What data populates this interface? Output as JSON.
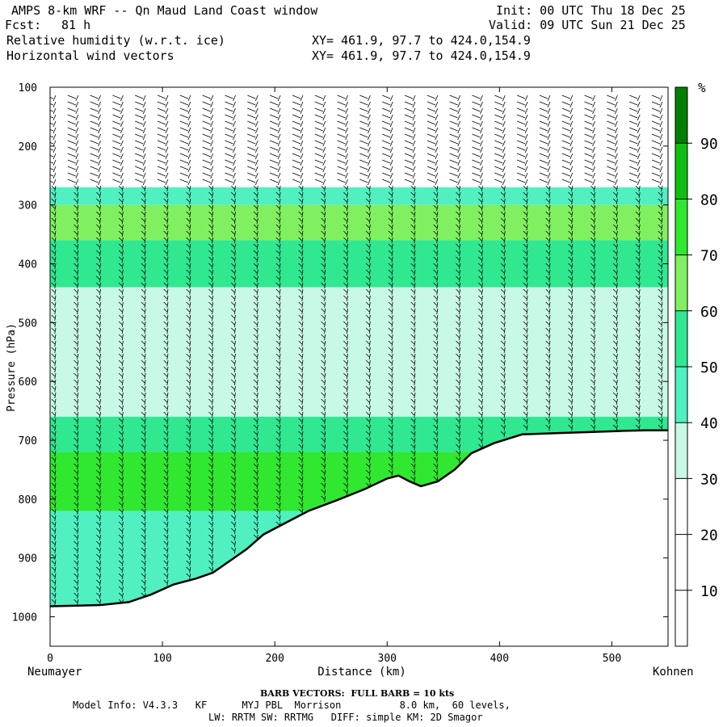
{
  "header": {
    "title": "AMPS 8-km WRF -- Qn Maud Land Coast window",
    "fcst_label": "Fcst:",
    "fcst_value": "81 h",
    "init": "Init: 00 UTC Thu 18 Dec 25",
    "valid": "Valid: 09 UTC Sun 21 Dec 25",
    "field1": "Relative humidity (w.r.t. ice)",
    "field2": "Horizontal wind vectors",
    "xy1": "XY= 461.9, 97.7 to 424.0,154.9",
    "xy2": "XY= 461.9, 97.7 to 424.0,154.9"
  },
  "footer": {
    "barb_note": "BARB VECTORS:  FULL BARB = 10 kts",
    "model_info": "Model Info: V4.3.3   KF      MYJ PBL  Morrison          8.0 km,  60 levels,",
    "model_info2": "LW: RRTM SW: RRTMG   DIFF: simple KM: 2D Smagor"
  },
  "chart_data": {
    "type": "heatmap",
    "title": "Relative humidity (w.r.t. ice) cross-section with horizontal wind vectors",
    "xlabel": "Distance (km)",
    "ylabel": "Pressure (hPa)",
    "xlim": [
      0,
      550
    ],
    "ylim": [
      1050,
      100
    ],
    "x_ticks": [
      0,
      100,
      200,
      300,
      400,
      500
    ],
    "y_ticks": [
      100,
      200,
      300,
      400,
      500,
      600,
      700,
      800,
      900,
      1000
    ],
    "left_endpoint_label": "Neumayer",
    "right_endpoint_label": "Kohnen",
    "colorbar": {
      "unit": "%",
      "levels": [
        10,
        20,
        30,
        40,
        50,
        60,
        70,
        80,
        90
      ],
      "colors": [
        "#ffffff",
        "#ffffff",
        "#ffffff",
        "#c8f8e6",
        "#50f0c0",
        "#30e890",
        "#80f060",
        "#30e830",
        "#10c010",
        "#008000"
      ]
    },
    "terrain_profile_hPa": [
      [
        0,
        982
      ],
      [
        25,
        981
      ],
      [
        45,
        980
      ],
      [
        70,
        975
      ],
      [
        90,
        962
      ],
      [
        110,
        945
      ],
      [
        130,
        935
      ],
      [
        145,
        925
      ],
      [
        160,
        905
      ],
      [
        175,
        885
      ],
      [
        190,
        860
      ],
      [
        210,
        840
      ],
      [
        230,
        820
      ],
      [
        255,
        802
      ],
      [
        280,
        783
      ],
      [
        300,
        765
      ],
      [
        310,
        760
      ],
      [
        320,
        770
      ],
      [
        330,
        778
      ],
      [
        345,
        770
      ],
      [
        360,
        750
      ],
      [
        375,
        722
      ],
      [
        395,
        705
      ],
      [
        420,
        690
      ],
      [
        450,
        688
      ],
      [
        480,
        686
      ],
      [
        510,
        684
      ],
      [
        530,
        683
      ],
      [
        550,
        683
      ]
    ],
    "rh_bands": [
      {
        "p_top": 270,
        "p_bottom": 300,
        "rh": 40
      },
      {
        "p_top": 300,
        "p_bottom": 360,
        "rh": 65
      },
      {
        "p_top": 360,
        "p_bottom": 440,
        "rh": 55
      },
      {
        "p_top": 440,
        "p_bottom": 660,
        "rh": 35
      },
      {
        "p_top": 660,
        "p_bottom": 720,
        "rh": 50
      },
      {
        "p_top": 720,
        "p_bottom": 820,
        "rh": 70
      },
      {
        "p_top": 820,
        "p_bottom": 1000,
        "rh": 45
      }
    ],
    "wind_columns_km": [
      5,
      25,
      45,
      65,
      85,
      105,
      125,
      145,
      165,
      185,
      205,
      225,
      245,
      265,
      285,
      305,
      325,
      345,
      365,
      385,
      405,
      425,
      445,
      465,
      485,
      505,
      525,
      545
    ]
  }
}
